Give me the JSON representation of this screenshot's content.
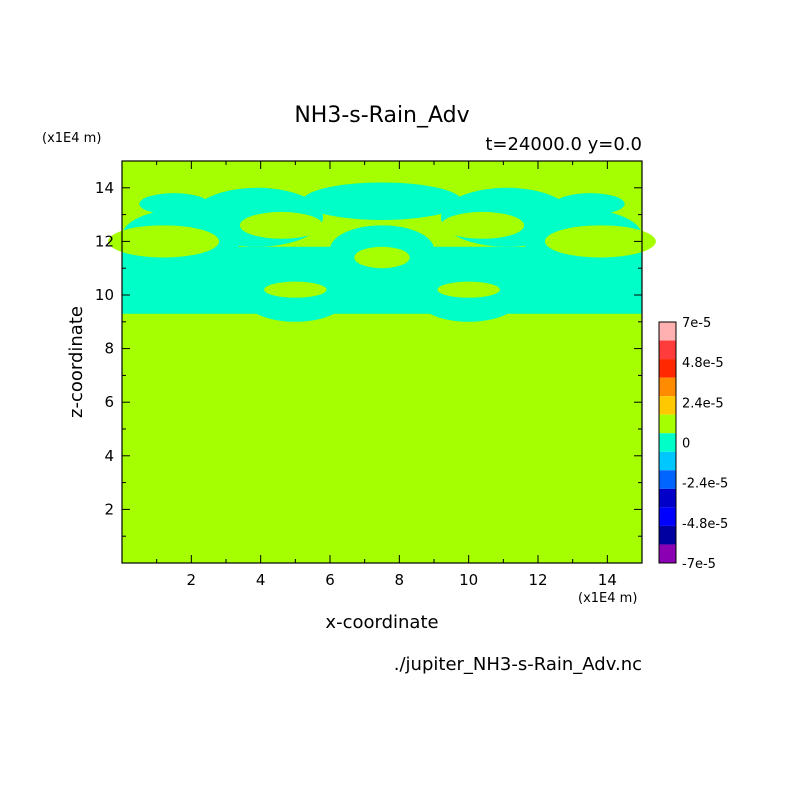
{
  "chart_data": {
    "type": "heatmap",
    "title": "NH3-s-Rain_Adv",
    "subtitle": "t=24000.0 y=0.0",
    "xlabel": "x-coordinate",
    "ylabel": "z-coordinate",
    "x_unit": "(x1E4 m)",
    "y_unit": "(x1E4 m)",
    "xlim": [
      0,
      15
    ],
    "ylim": [
      0,
      15
    ],
    "x_ticks": [
      "2",
      "4",
      "6",
      "8",
      "10",
      "12",
      "14"
    ],
    "y_ticks": [
      "2",
      "4",
      "6",
      "8",
      "10",
      "12",
      "14"
    ],
    "background_level": "0",
    "background_color": "#a5ff00",
    "contour_color": "#00ffc8",
    "contour_level": "-2.4e-5 to 0",
    "colorbar": {
      "levels": [
        "7e-5",
        "4.8e-5",
        "2.4e-5",
        "0",
        "-2.4e-5",
        "-4.8e-5",
        "-7e-5"
      ],
      "colors": [
        "#ffb0b0",
        "#ff3c3c",
        "#ff2800",
        "#ff8c00",
        "#ffc800",
        "#a5ff00",
        "#00ffc8",
        "#00c8ff",
        "#0064ff",
        "#0000c8",
        "#0000ff",
        "#0000a0",
        "#8c00b4"
      ]
    },
    "regions": [
      {
        "x": [
          0.0,
          15.0
        ],
        "y": [
          9.3,
          11.8
        ],
        "shape": "band"
      },
      {
        "x": [
          0.0,
          3.5
        ],
        "y": [
          11.2,
          13.2
        ],
        "shape": "blob"
      },
      {
        "x": [
          11.5,
          15.0
        ],
        "y": [
          11.2,
          13.2
        ],
        "shape": "blob"
      },
      {
        "x": [
          2.0,
          5.8
        ],
        "y": [
          11.8,
          14.0
        ],
        "shape": "blob"
      },
      {
        "x": [
          9.2,
          13.0
        ],
        "y": [
          11.8,
          14.0
        ],
        "shape": "blob"
      },
      {
        "x": [
          5.2,
          9.8
        ],
        "y": [
          12.8,
          14.2
        ],
        "shape": "blob"
      },
      {
        "x": [
          3.5,
          6.5
        ],
        "y": [
          9.0,
          10.8
        ],
        "shape": "blob"
      },
      {
        "x": [
          8.5,
          11.5
        ],
        "y": [
          9.0,
          10.8
        ],
        "shape": "blob"
      },
      {
        "x": [
          6.0,
          9.0
        ],
        "y": [
          10.8,
          12.6
        ],
        "shape": "blob"
      },
      {
        "x": [
          0.5,
          2.5
        ],
        "y": [
          13.0,
          13.8
        ],
        "shape": "blob"
      },
      {
        "x": [
          12.5,
          14.5
        ],
        "y": [
          13.0,
          13.8
        ],
        "shape": "blob"
      }
    ]
  },
  "footer": {
    "filename": "./jupiter_NH3-s-Rain_Adv.nc"
  }
}
